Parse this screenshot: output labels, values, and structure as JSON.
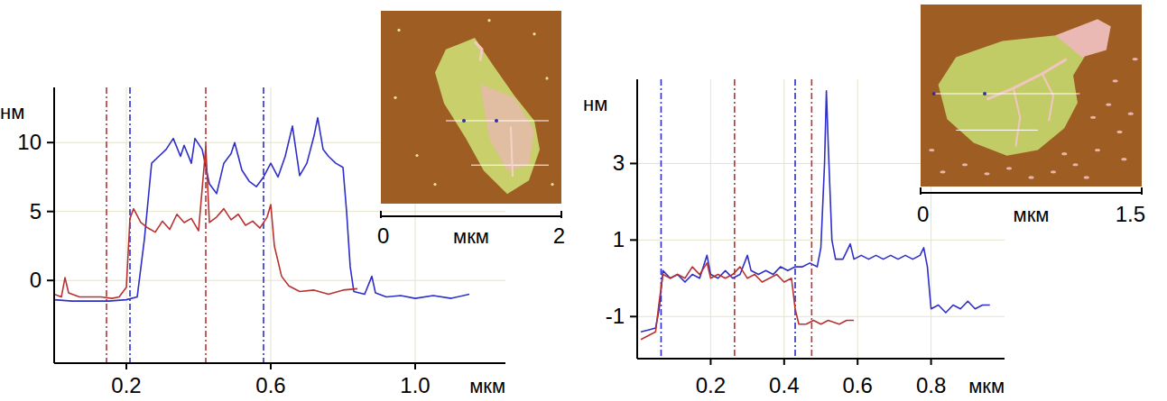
{
  "chart_data": [
    {
      "type": "line",
      "xlabel": "мкм",
      "ylabel": "нм",
      "xlim": [
        0,
        1.25
      ],
      "ylim": [
        -6,
        14
      ],
      "xticks": [
        0.2,
        0.6,
        {
          "value": 1,
          "label": "1.0"
        }
      ],
      "yticks": [
        0,
        5,
        10
      ],
      "grid": true,
      "series": [
        {
          "color": "#2e2ec8",
          "line_style": "solid",
          "cursors": [
            0.21,
            0.58
          ],
          "x": [
            0,
            0.05,
            0.1,
            0.15,
            0.2,
            0.23,
            0.25,
            0.27,
            0.29,
            0.31,
            0.33,
            0.35,
            0.36,
            0.38,
            0.39,
            0.41,
            0.43,
            0.45,
            0.47,
            0.49,
            0.5,
            0.52,
            0.54,
            0.56,
            0.58,
            0.6,
            0.62,
            0.64,
            0.66,
            0.68,
            0.7,
            0.72,
            0.73,
            0.745,
            0.76,
            0.78,
            0.8,
            0.81,
            0.82,
            0.83,
            0.86,
            0.88,
            0.89,
            0.92,
            0.96,
            1.0,
            1.05,
            1.1,
            1.15
          ],
          "values": [
            -1.4,
            -1.5,
            -1.5,
            -1.5,
            -1.4,
            -1.2,
            3,
            8.5,
            9,
            9.5,
            10.3,
            9,
            9.8,
            8.5,
            10.3,
            9.5,
            7,
            6.3,
            8.5,
            9.2,
            10,
            8,
            7.2,
            6.8,
            7.5,
            8.5,
            7.5,
            9,
            11.2,
            7.6,
            8.5,
            10.5,
            11.8,
            9.5,
            9,
            8.5,
            8.2,
            5,
            1,
            -0.8,
            -1.0,
            0.3,
            -0.9,
            -1.2,
            -1.1,
            -1.3,
            -1.1,
            -1.3,
            -1.0
          ]
        },
        {
          "color": "#b83232",
          "line_style": "solid",
          "cursors": [
            0.145,
            0.42
          ],
          "x": [
            0,
            0.02,
            0.03,
            0.04,
            0.07,
            0.1,
            0.13,
            0.16,
            0.18,
            0.2,
            0.21,
            0.22,
            0.24,
            0.26,
            0.28,
            0.3,
            0.32,
            0.34,
            0.36,
            0.38,
            0.4,
            0.42,
            0.43,
            0.45,
            0.47,
            0.49,
            0.51,
            0.53,
            0.55,
            0.57,
            0.59,
            0.6,
            0.61,
            0.63,
            0.65,
            0.68,
            0.72,
            0.76,
            0.8,
            0.84
          ],
          "values": [
            -1.0,
            -1.2,
            0.2,
            -0.9,
            -1.2,
            -1.2,
            -1.2,
            -1.3,
            -1.2,
            -0.5,
            4.5,
            5.2,
            4.2,
            3.8,
            3.5,
            4.3,
            3.7,
            4.8,
            4.2,
            4.5,
            3.6,
            9.7,
            4.2,
            4.6,
            5.2,
            4.4,
            4.8,
            4.0,
            4.3,
            3.8,
            4.6,
            5.5,
            2.5,
            0.3,
            -0.4,
            -0.8,
            -0.7,
            -1.0,
            -0.7,
            -0.6
          ]
        }
      ],
      "inset": {
        "xlim": [
          0,
          2
        ],
        "xticks": [
          0,
          2
        ],
        "xlabel": "мкм"
      }
    },
    {
      "type": "line",
      "xlabel": "мкм",
      "ylabel": "нм",
      "xlim": [
        0,
        1.0
      ],
      "ylim": [
        -2.1,
        5.2
      ],
      "xticks": [
        0.2,
        0.4,
        0.6,
        0.8
      ],
      "yticks": [
        -1,
        1,
        3
      ],
      "grid": true,
      "series": [
        {
          "color": "#2e2ec8",
          "line_style": "solid",
          "cursors": [
            0.065,
            0.43
          ],
          "x": [
            0.01,
            0.03,
            0.05,
            0.06,
            0.07,
            0.09,
            0.11,
            0.13,
            0.15,
            0.17,
            0.19,
            0.2,
            0.22,
            0.24,
            0.26,
            0.28,
            0.3,
            0.31,
            0.33,
            0.35,
            0.37,
            0.39,
            0.41,
            0.43,
            0.45,
            0.47,
            0.49,
            0.5,
            0.51,
            0.515,
            0.52,
            0.53,
            0.54,
            0.56,
            0.58,
            0.59,
            0.61,
            0.63,
            0.65,
            0.67,
            0.69,
            0.71,
            0.73,
            0.75,
            0.77,
            0.78,
            0.79,
            0.8,
            0.82,
            0.84,
            0.86,
            0.88,
            0.9,
            0.92,
            0.94,
            0.96
          ],
          "values": [
            -1.4,
            -1.35,
            -1.3,
            -0.8,
            0.2,
            0.0,
            0.1,
            -0.1,
            0.1,
            0.0,
            0.6,
            0.1,
            0.0,
            0.2,
            0.0,
            0.1,
            0.6,
            0.2,
            0.1,
            0.2,
            0.1,
            0.3,
            0.2,
            0.3,
            0.3,
            0.4,
            0.3,
            0.8,
            3.0,
            4.9,
            3.5,
            1.0,
            0.5,
            0.5,
            0.9,
            0.5,
            0.6,
            0.5,
            0.6,
            0.5,
            0.6,
            0.5,
            0.6,
            0.5,
            0.6,
            0.8,
            0.3,
            -0.8,
            -0.7,
            -0.9,
            -0.7,
            -0.8,
            -0.6,
            -0.8,
            -0.7,
            -0.7
          ]
        },
        {
          "color": "#b83232",
          "line_style": "solid",
          "cursors": [
            0.265,
            0.475
          ],
          "x": [
            0.01,
            0.03,
            0.05,
            0.06,
            0.07,
            0.09,
            0.11,
            0.13,
            0.15,
            0.17,
            0.19,
            0.2,
            0.22,
            0.24,
            0.26,
            0.28,
            0.3,
            0.32,
            0.34,
            0.36,
            0.38,
            0.4,
            0.42,
            0.43,
            0.44,
            0.46,
            0.48,
            0.5,
            0.52,
            0.55,
            0.57,
            0.59
          ],
          "values": [
            -1.6,
            -1.5,
            -1.4,
            -0.6,
            0.1,
            0.0,
            0.1,
            0.0,
            0.3,
            0.1,
            0.4,
            0.0,
            0.1,
            0.0,
            0.1,
            0.3,
            0.0,
            0.1,
            -0.1,
            0.0,
            0.1,
            -0.1,
            0.0,
            -0.8,
            -1.2,
            -1.2,
            -1.1,
            -1.2,
            -1.1,
            -1.2,
            -1.1,
            -1.1
          ]
        }
      ],
      "inset": {
        "xlim": [
          0,
          1.5
        ],
        "xticks": [
          0,
          1.5
        ],
        "xlabel": "мкм"
      }
    }
  ]
}
